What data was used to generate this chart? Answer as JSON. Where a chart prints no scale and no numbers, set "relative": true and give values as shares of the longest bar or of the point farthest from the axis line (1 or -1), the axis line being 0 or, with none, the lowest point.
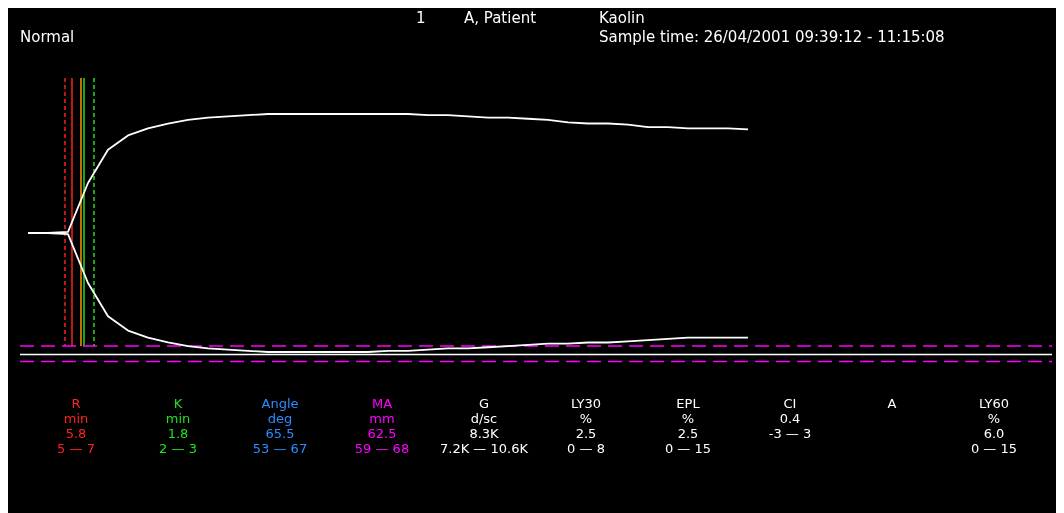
{
  "chart_data": {
    "type": "line",
    "title": "Normal",
    "relative": true,
    "categories": [
      null,
      null,
      null,
      null,
      null,
      null,
      null,
      null,
      null,
      null,
      null,
      null,
      null,
      null,
      null,
      null,
      null,
      null,
      null,
      null,
      null,
      null,
      null,
      null,
      null,
      null,
      null,
      null,
      null,
      null,
      null,
      null,
      null,
      null,
      null,
      null,
      null
    ],
    "series": [
      {
        "color": "#ffffff",
        "values": [
          0.5,
          0.5,
          0.505,
          0.71,
          0.85,
          0.91,
          0.94,
          0.96,
          0.975,
          0.985,
          0.99,
          0.995,
          1,
          1,
          1,
          1,
          1,
          1,
          1,
          1,
          0.995,
          0.995,
          0.99,
          0.985,
          0.985,
          0.98,
          0.975,
          0.965,
          0.96,
          0.96,
          0.955,
          0.945,
          0.945,
          0.94,
          0.94,
          0.94,
          0.935
        ]
      },
      {
        "color": "#ffffff",
        "values": [
          0.5,
          0.5,
          0.495,
          0.29,
          0.15,
          0.09,
          0.06,
          0.04,
          0.025,
          0.015,
          0.01,
          0.005,
          0,
          0,
          0,
          0,
          0,
          0,
          0.005,
          0.005,
          0.01,
          0.015,
          0.015,
          0.02,
          0.025,
          0.03,
          0.035,
          0.035,
          0.04,
          0.04,
          0.045,
          0.05,
          0.055,
          0.06,
          0.06,
          0.06,
          0.06
        ]
      }
    ],
    "ref_lines": [
      {
        "axis": "y",
        "value": 0.025,
        "color": "#ff00ff",
        "line_style": "dashed"
      },
      {
        "axis": "y",
        "value": -0.01,
        "color": "#ffffff",
        "line_style": "solid"
      },
      {
        "axis": "y",
        "value": -0.04,
        "color": "#ff00ff",
        "line_style": "dashed"
      }
    ],
    "annotations": [
      "1",
      "A, Patient",
      "Kaolin",
      "Sample time: 26/04/2001 09:39:12 - 11:15:08",
      "R\nmin\n5.8\n5 — 7",
      "K\nmin\n1.8\n2 — 3",
      "Angle\ndeg\n65.5\n53 — 67",
      "MA\nmm\n62.5\n59 — 68",
      "G\nd/sc\n8.3K\n7.2K — 10.6K",
      "LY30\n%\n2.5\n0 — 8",
      "EPL\n%\n2.5\n0 — 15",
      "CI\n\n0.4\n-3 — 3",
      "A",
      "LY60\n%\n6.0\n0 — 15"
    ]
  }
}
